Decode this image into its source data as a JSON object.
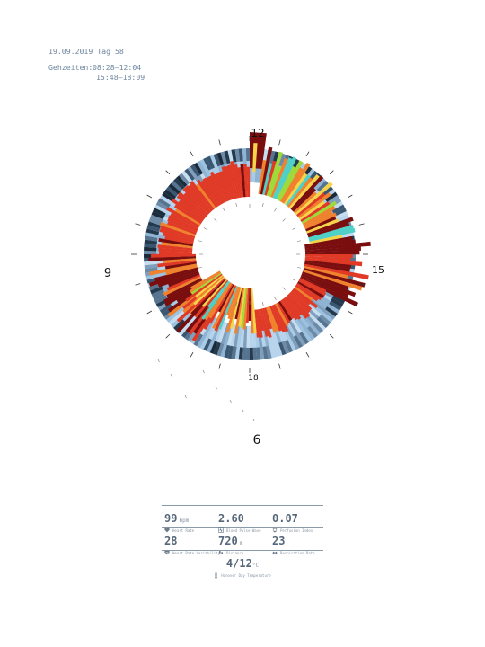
{
  "header": {
    "date_line": "19.09.2019 Tag 58",
    "times_label": "Gehzeiten:",
    "times": [
      "08:28–12:04",
      "15:48–18:09"
    ]
  },
  "clock": {
    "labels": [
      {
        "hour": 12,
        "text": "12"
      },
      {
        "hour": 15,
        "text": "15"
      },
      {
        "hour": 18,
        "text": "18"
      },
      {
        "hour": 9,
        "text": "9"
      },
      {
        "hour": 6,
        "text": "6"
      }
    ]
  },
  "colors": {
    "ring_base": "#a9cbe6",
    "outer_ring_dark": "#20364a",
    "red": "#e03a26",
    "dark_red": "#7a0d0d",
    "orange": "#f0822e",
    "yellow": "#f6d44a",
    "green": "#9edb3a",
    "cyan": "#4fd1c8"
  },
  "stats": {
    "row1": [
      {
        "value": "99",
        "unit": "bpm",
        "label": "Heart Rate",
        "icon": "heart-icon"
      },
      {
        "value": "2.60",
        "unit": "",
        "label": "Blood Pulse Wave",
        "icon": "pulse-wave-icon"
      },
      {
        "value": "0.07",
        "unit": "",
        "label": "Perfusion Index",
        "icon": "perfusion-icon"
      }
    ],
    "row2": [
      {
        "value": "28",
        "unit": "",
        "label": "Heart Rate Variability",
        "icon": "heart-variability-icon"
      },
      {
        "value": "720",
        "unit": "m",
        "label": "Distance",
        "icon": "footprints-icon"
      },
      {
        "value": "23",
        "unit": "",
        "label": "Respiration Rate",
        "icon": "lungs-icon"
      }
    ],
    "temperature": {
      "value": "4/12",
      "unit": "°C",
      "label": "Hanover Day Temperature",
      "icon": "thermometer-icon"
    }
  }
}
